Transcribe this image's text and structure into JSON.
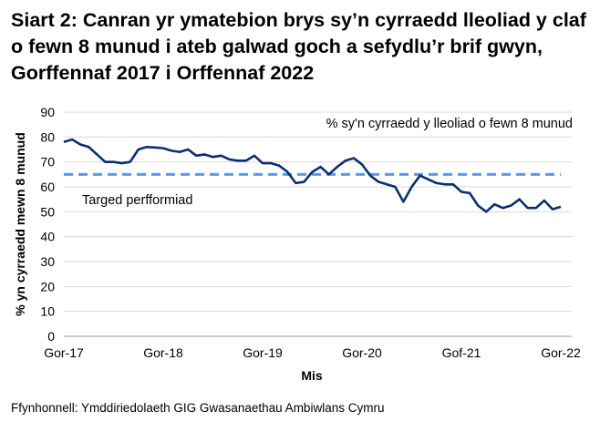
{
  "chart_data": {
    "type": "line",
    "title": "Siart 2: Canran yr ymatebion brys sy’n cyrraedd lleoliad y claf o fewn 8 munud i ateb galwad goch a sefydlu’r brif gwyn, Gorffennaf 2017 i Orffennaf 2022",
    "xlabel": "Mis",
    "ylabel": "% yn cyrraedd mewn 8 munud",
    "ylim": [
      0,
      90
    ],
    "yticks": [
      0,
      10,
      20,
      30,
      40,
      50,
      60,
      70,
      80,
      90
    ],
    "xtick_labels": [
      "Gor-17",
      "Gor-18",
      "Gor-19",
      "Gor-20",
      "Gof-21",
      "Gor-22"
    ],
    "grid": true,
    "series": [
      {
        "name": "% sy'n cyrraedd y lleoliad o fewn 8 munud",
        "color": "#0b2f6b",
        "values": [
          78,
          79,
          77,
          76,
          73,
          70,
          70,
          69.5,
          70,
          75,
          76,
          75.8,
          75.5,
          74.5,
          74,
          75,
          72.5,
          73,
          72,
          72.5,
          71,
          70.5,
          70.5,
          72.5,
          69.5,
          69.5,
          68.5,
          66,
          61.5,
          62,
          66,
          68,
          65,
          68,
          70.5,
          71.5,
          69,
          64.5,
          62,
          61,
          60,
          54,
          60,
          64.5,
          63,
          61.5,
          61,
          61,
          58,
          57.5,
          52.5,
          50,
          53,
          51.5,
          52.5,
          55,
          51.5,
          51.5,
          54.5,
          51,
          52
        ]
      },
      {
        "name": "Targed perfformiad",
        "color": "#4f9bf5",
        "value": 65
      }
    ]
  },
  "source": "Ffynhonnell: Ymddiriedolaeth GIG Gwasanaethau Ambiwlans Cymru"
}
